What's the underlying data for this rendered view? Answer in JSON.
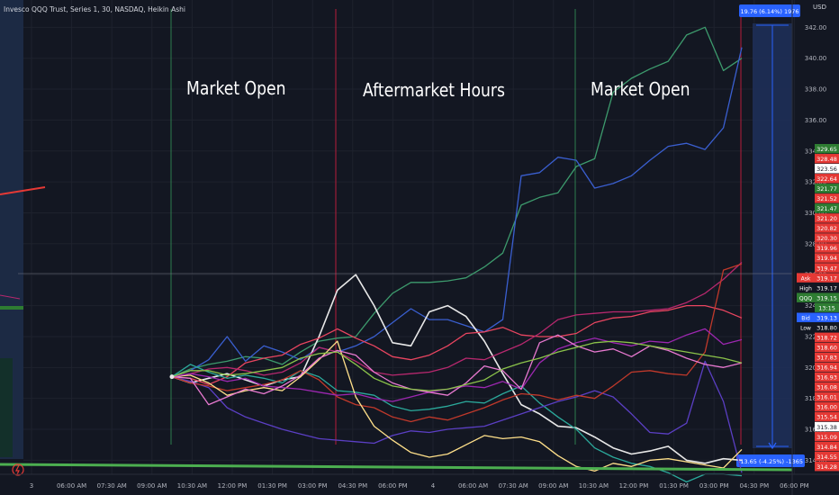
{
  "header": {
    "title": "Invesco QQQ Trust, Series 1, 30, NASDAQ, Heikin Ashi",
    "currency": "USD"
  },
  "annotations": {
    "open1": "Market Open",
    "after": "Aftermarket Hours",
    "open2": "Market Open"
  },
  "measure": {
    "top": "19.76 (6.14%) 1976",
    "bottom": "-13.65 (-4.25%) -1365"
  },
  "colors": {
    "bg": "#131722",
    "grid": "#1e222d",
    "open_line": "#2e7d4f",
    "after_line": "#b71c3a"
  },
  "chart_data": {
    "type": "line",
    "title": "Invesco QQQ Trust, Series 1, 30, NASDAQ, Heikin Ashi",
    "xlabel": "",
    "ylabel": "",
    "ylim": [
      313.5,
      343.3
    ],
    "grid": true,
    "legend": "none",
    "x_ticks": [
      "3",
      "06:00 AM",
      "07:30 AM",
      "09:00 AM",
      "10:30 AM",
      "12:00 PM",
      "01:30 PM",
      "03:00 PM",
      "04:30 PM",
      "06:00 PM",
      "4",
      "06:00 AM",
      "07:30 AM",
      "09:00 AM",
      "10:30 AM",
      "12:00 PM",
      "01:30 PM",
      "03:00 PM",
      "04:30 PM",
      "06:00 PM"
    ],
    "y_ticks": [
      342.0,
      340.0,
      338.0,
      336.0,
      334.0,
      332.0,
      330.0,
      328.0,
      326.0,
      324.0,
      322.0,
      320.0,
      318.0,
      316.0,
      314.0
    ],
    "series": [
      {
        "color": "#3d9b6d",
        "values": [
          319.4,
          319.9,
          320.2,
          320.4,
          320.7,
          320.6,
          320.2,
          321.0,
          321.7,
          321.9,
          322.0,
          323.5,
          324.8,
          325.5,
          325.5,
          325.6,
          325.8,
          326.5,
          327.4,
          330.5,
          331.0,
          331.3,
          333.0,
          333.5,
          337.8,
          338.7,
          339.3,
          339.8,
          341.5,
          342.0,
          339.2,
          340.0
        ]
      },
      {
        "color": "#3a5fd0",
        "values": [
          319.4,
          319.8,
          320.5,
          322.0,
          320.4,
          321.4,
          321.0,
          320.5,
          321.3,
          321.0,
          321.4,
          322.0,
          322.9,
          323.8,
          323.1,
          323.1,
          322.7,
          322.3,
          323.1,
          332.4,
          332.6,
          333.6,
          333.4,
          331.6,
          331.9,
          332.4,
          333.4,
          334.3,
          334.5,
          334.1,
          335.5,
          340.7
        ]
      },
      {
        "color": "#e8e8e8",
        "values": [
          319.4,
          319.0,
          319.3,
          319.6,
          319.2,
          318.8,
          319.2,
          319.4,
          322.0,
          325.0,
          326.0,
          324.0,
          321.6,
          321.4,
          323.6,
          324.0,
          323.3,
          321.7,
          319.6,
          317.6,
          317.0,
          316.2,
          316.1,
          315.5,
          314.8,
          314.4,
          314.6,
          314.9,
          314.0,
          313.8,
          314.1,
          314.0
        ]
      },
      {
        "color": "#e94560",
        "values": [
          319.4,
          319.3,
          318.9,
          319.4,
          320.3,
          320.6,
          320.8,
          321.5,
          321.9,
          322.5,
          321.9,
          321.4,
          320.7,
          320.5,
          320.8,
          321.4,
          322.2,
          322.3,
          322.6,
          322.1,
          322.0,
          322.0,
          322.2,
          322.9,
          323.2,
          323.3,
          323.6,
          323.7,
          324.0,
          324.0,
          323.7,
          323.2
        ]
      },
      {
        "color": "#2ba99b",
        "values": [
          319.4,
          320.2,
          319.7,
          319.3,
          319.5,
          319.3,
          319.0,
          319.8,
          319.4,
          318.5,
          318.4,
          318.2,
          317.5,
          317.2,
          317.3,
          317.5,
          317.8,
          317.7,
          318.3,
          318.8,
          317.7,
          316.8,
          316.0,
          314.8,
          314.2,
          313.8,
          313.6,
          313.2,
          312.6,
          313.1,
          313.1,
          313.0
        ]
      },
      {
        "color": "#b7286e",
        "values": [
          319.4,
          319.6,
          319.9,
          320.0,
          319.8,
          319.5,
          319.7,
          320.3,
          321.3,
          321.0,
          320.4,
          319.7,
          319.5,
          319.6,
          319.7,
          320.0,
          320.6,
          320.5,
          321.0,
          321.5,
          322.2,
          323.1,
          323.4,
          323.5,
          323.6,
          323.6,
          323.7,
          323.8,
          324.2,
          324.8,
          325.7,
          326.8
        ]
      },
      {
        "color": "#5b3fc4",
        "values": [
          319.4,
          319.1,
          318.7,
          317.4,
          316.8,
          316.4,
          316.0,
          315.7,
          315.4,
          315.3,
          315.2,
          315.1,
          315.6,
          315.9,
          315.8,
          316.0,
          316.1,
          316.2,
          316.6,
          317.0,
          317.4,
          317.8,
          318.1,
          318.5,
          318.1,
          317.0,
          315.8,
          315.7,
          316.4,
          320.4,
          317.8,
          313.2
        ]
      },
      {
        "color": "#c0392b",
        "values": [
          319.4,
          319.0,
          318.8,
          318.5,
          318.7,
          318.9,
          319.2,
          319.8,
          319.2,
          318.1,
          317.6,
          317.4,
          316.8,
          316.5,
          316.8,
          316.6,
          317.0,
          317.4,
          317.9,
          318.3,
          318.2,
          317.9,
          318.2,
          318.0,
          318.8,
          319.7,
          319.8,
          319.6,
          319.5,
          321.0,
          326.3,
          326.7
        ]
      },
      {
        "color": "#ffe08a",
        "values": [
          319.4,
          319.5,
          319.0,
          318.2,
          318.5,
          318.7,
          318.5,
          319.4,
          320.5,
          321.7,
          318.1,
          316.2,
          315.3,
          314.5,
          314.2,
          314.4,
          315.0,
          315.6,
          315.4,
          315.5,
          315.2,
          314.3,
          313.6,
          313.3,
          313.8,
          313.6,
          314.0,
          314.1,
          313.9,
          313.7,
          313.5,
          314.7
        ]
      },
      {
        "color": "#9c27b0",
        "values": [
          319.4,
          319.6,
          319.4,
          319.1,
          319.3,
          318.8,
          318.7,
          318.6,
          318.4,
          318.2,
          318.3,
          318.0,
          317.8,
          318.1,
          318.4,
          318.6,
          318.8,
          318.7,
          319.1,
          318.6,
          320.3,
          321.2,
          321.6,
          321.9,
          321.6,
          321.4,
          321.7,
          321.6,
          322.1,
          322.5,
          321.5,
          321.8
        ]
      },
      {
        "color": "#e879d0",
        "values": [
          319.4,
          319.3,
          317.6,
          318.1,
          318.6,
          318.3,
          318.8,
          319.5,
          320.6,
          321.1,
          320.8,
          319.7,
          319.0,
          318.6,
          318.4,
          318.2,
          319.0,
          320.1,
          319.8,
          318.6,
          321.6,
          322.1,
          321.4,
          321.0,
          321.2,
          320.7,
          321.4,
          321.1,
          320.6,
          320.2,
          320.0,
          320.3
        ]
      },
      {
        "color": "#8bc34a",
        "values": [
          319.4,
          319.8,
          319.8,
          319.5,
          319.6,
          319.8,
          320.0,
          320.6,
          320.9,
          321.0,
          320.2,
          319.3,
          318.8,
          318.6,
          318.5,
          318.6,
          318.9,
          319.2,
          319.9,
          320.3,
          320.6,
          321.0,
          321.3,
          321.6,
          321.7,
          321.6,
          321.4,
          321.2,
          321.0,
          320.8,
          320.6,
          320.3
        ]
      }
    ]
  },
  "price_labels": [
    {
      "text": "329.65",
      "bg": "#2e7d32",
      "fg": "#ffffff"
    },
    {
      "text": "328.48",
      "bg": "#e53935",
      "fg": "#ffffff"
    },
    {
      "text": "323.56",
      "bg": "#ffffff",
      "fg": "#131722"
    },
    {
      "text": "322.64",
      "bg": "#e53935",
      "fg": "#ffffff"
    },
    {
      "text": "321.77",
      "bg": "#2e7d32",
      "fg": "#ffffff"
    },
    {
      "text": "321.52",
      "bg": "#e53935",
      "fg": "#ffffff"
    },
    {
      "text": "321.47",
      "bg": "#2e7d32",
      "fg": "#ffffff"
    },
    {
      "text": "321.20",
      "bg": "#e53935",
      "fg": "#ffffff"
    },
    {
      "text": "320.82",
      "bg": "#e53935",
      "fg": "#ffffff"
    },
    {
      "text": "320.30",
      "bg": "#e53935",
      "fg": "#ffffff"
    },
    {
      "text": "319.96",
      "bg": "#e53935",
      "fg": "#ffffff"
    },
    {
      "text": "319.94",
      "bg": "#e53935",
      "fg": "#ffffff"
    },
    {
      "text": "319.47",
      "bg": "#e53935",
      "fg": "#ffffff"
    },
    {
      "text": "319.17",
      "bg": "#e53935",
      "fg": "#ffffff",
      "tag": "Ask",
      "tag_bg": "#e53935"
    },
    {
      "text": "319.17",
      "bg": "#131722",
      "fg": "#ffffff",
      "tag": "High",
      "tag_bg": "#131722"
    },
    {
      "text": "319.15",
      "bg": "#2e7d32",
      "fg": "#ffffff",
      "tag": "QQQ",
      "tag_bg": "#2e7d32"
    },
    {
      "text": "13:15",
      "bg": "#2e7d32",
      "fg": "#ffffff"
    },
    {
      "text": "319.13",
      "bg": "#2962ff",
      "fg": "#ffffff",
      "tag": "Bid",
      "tag_bg": "#2962ff"
    },
    {
      "text": "318.80",
      "bg": "#131722",
      "fg": "#ffffff",
      "tag": "Low",
      "tag_bg": "#131722"
    },
    {
      "text": "318.72",
      "bg": "#e53935",
      "fg": "#ffffff"
    },
    {
      "text": "318.60",
      "bg": "#e53935",
      "fg": "#ffffff"
    },
    {
      "text": "317.83",
      "bg": "#e53935",
      "fg": "#ffffff"
    },
    {
      "text": "316.94",
      "bg": "#e53935",
      "fg": "#ffffff"
    },
    {
      "text": "316.93",
      "bg": "#e53935",
      "fg": "#ffffff"
    },
    {
      "text": "316.08",
      "bg": "#e53935",
      "fg": "#ffffff"
    },
    {
      "text": "316.01",
      "bg": "#e53935",
      "fg": "#ffffff"
    },
    {
      "text": "316.00",
      "bg": "#e53935",
      "fg": "#ffffff"
    },
    {
      "text": "315.54",
      "bg": "#e53935",
      "fg": "#ffffff"
    },
    {
      "text": "315.38",
      "bg": "#ffffff",
      "fg": "#131722"
    },
    {
      "text": "315.09",
      "bg": "#e53935",
      "fg": "#ffffff"
    },
    {
      "text": "314.84",
      "bg": "#e53935",
      "fg": "#ffffff"
    },
    {
      "text": "314.55",
      "bg": "#e53935",
      "fg": "#ffffff"
    },
    {
      "text": "314.28",
      "bg": "#e53935",
      "fg": "#ffffff"
    }
  ]
}
